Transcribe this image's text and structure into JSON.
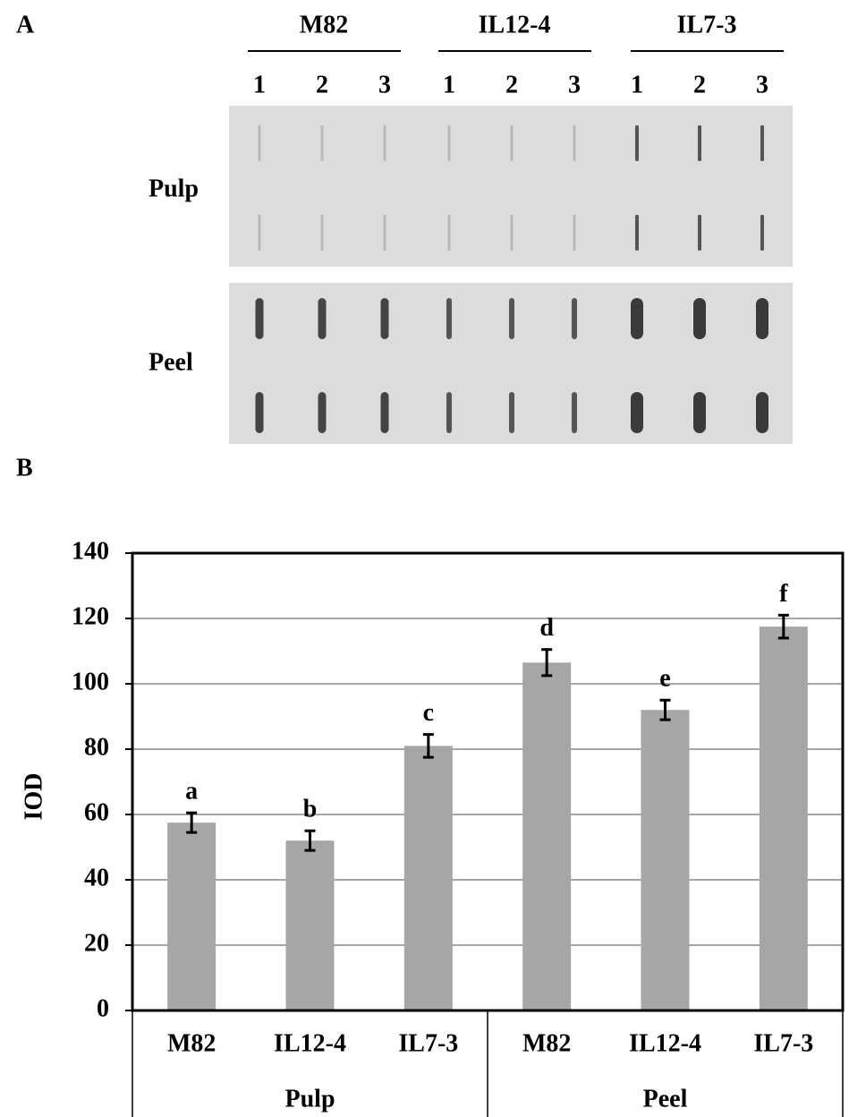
{
  "panel_a": {
    "label": "A",
    "groups": [
      "M82",
      "IL12-4",
      "IL7-3"
    ],
    "lanes": [
      "1",
      "2",
      "3",
      "1",
      "2",
      "3",
      "1",
      "2",
      "3"
    ],
    "rows": [
      "Pulp",
      "Peel"
    ]
  },
  "chart_data": {
    "type": "bar",
    "panel_label": "B",
    "ylabel": "IOD",
    "categories": [
      "M82",
      "IL12-4",
      "IL7-3",
      "M82",
      "IL12-4",
      "IL7-3"
    ],
    "groups": [
      "Pulp",
      "Peel"
    ],
    "values": [
      57.5,
      52,
      81,
      106.5,
      92,
      117.5
    ],
    "errors": [
      3,
      3,
      3.5,
      4,
      3,
      3.5
    ],
    "annotations": [
      "a",
      "b",
      "c",
      "d",
      "e",
      "f"
    ],
    "color": "#a6a6a6",
    "ylim": [
      0,
      140
    ],
    "yticks": [
      0,
      20,
      40,
      60,
      80,
      100,
      120,
      140
    ],
    "grid": true
  }
}
